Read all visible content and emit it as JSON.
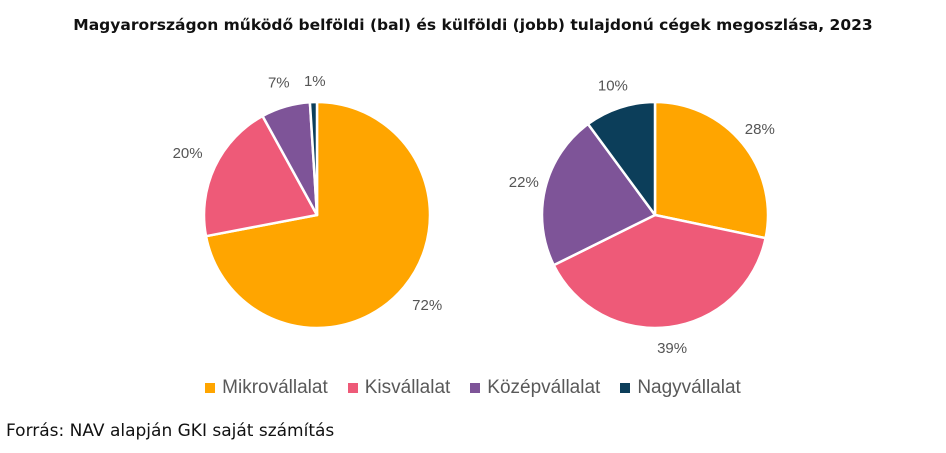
{
  "chart_data": {
    "title": "Magyarországon működő belföldi (bal) és külföldi (jobb) tulajdonú cégek megoszlása, 2023",
    "source": "Forrás: NAV alapján GKI saját számítás",
    "categories": [
      "Mikrovállalat",
      "Kisvállalat",
      "Középvállalat",
      "Nagyvállalat"
    ],
    "colors": [
      "#FFA500",
      "#EE5A78",
      "#7E5498",
      "#0C3E5A"
    ],
    "legend_position": "bottom",
    "charts": [
      {
        "type": "pie",
        "values": [
          72,
          20,
          7,
          1
        ],
        "labels": [
          "72%",
          "20%",
          "7%",
          "1%"
        ]
      },
      {
        "type": "pie",
        "values": [
          28,
          39,
          22,
          10
        ],
        "labels": [
          "28%",
          "39%",
          "22%",
          "10%"
        ]
      }
    ]
  }
}
